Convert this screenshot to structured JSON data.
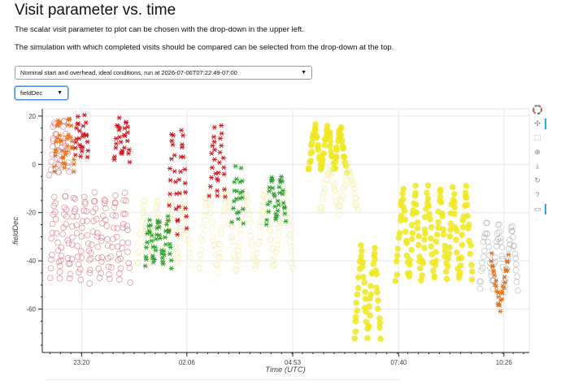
{
  "page": {
    "title": "Visit parameter vs. time",
    "desc1": "The scalar visit parameter to plot can be chosen with the drop-down in the upper left.",
    "desc2": "The simulation with which completed visits should be compared can be selected from the drop-down at the top."
  },
  "controls": {
    "simulation_select": "Nominal start and overhead, ideal conditions, run at 2026-07-06T07:22:49-07:00",
    "parameter_select": "fieldDec",
    "dropdown_glyph": "▼"
  },
  "toolbar": {
    "icons": [
      "bokeh-logo-icon",
      "pan-icon",
      "box-zoom-icon",
      "wheel-zoom-icon",
      "save-icon",
      "reset-icon",
      "help-icon",
      "hover-icon"
    ],
    "glyphs": [
      "✣",
      "⬚",
      "⊕",
      "⤓",
      "↻",
      "?",
      "▭"
    ]
  },
  "chart_data": {
    "type": "scatter",
    "title": "",
    "xlabel": "Time (UTC)",
    "ylabel": "fieldDec",
    "x_tick_labels": [
      "23:20",
      "02:06",
      "04:53",
      "07:40",
      "10:26"
    ],
    "x_tick_hours": [
      23.333,
      26.1,
      28.883,
      31.667,
      34.433
    ],
    "xlim_hours": [
      22.3,
      35.1
    ],
    "ylim": [
      -78,
      23
    ],
    "y_ticks": [
      20,
      0,
      -20,
      -40,
      -60
    ],
    "grid": true,
    "colors": {
      "completed_orange": "#e0701a",
      "completed_red": "#d0161e",
      "completed_green": "#2ca02c",
      "simulated_yellow": "#f0e81e",
      "simulated_pink": "#d47080",
      "simulated_faint": "#f4f0b0",
      "simulated_grey": "#b0b0b0"
    },
    "series": [
      {
        "style": "completed",
        "color": "completed_orange",
        "segments": [
          [
            22.6,
            23.15,
            -2,
            20,
            2
          ],
          [
            34.1,
            34.55,
            -38,
            -60,
            1
          ]
        ]
      },
      {
        "style": "completed",
        "color": "completed_red",
        "segments": [
          [
            23.15,
            23.5,
            3,
            19,
            2
          ],
          [
            24.2,
            24.6,
            2,
            19,
            2
          ],
          [
            25.6,
            26.1,
            -28,
            16,
            2
          ],
          [
            26.7,
            27.1,
            -14,
            16,
            2
          ]
        ]
      },
      {
        "style": "completed",
        "color": "completed_green",
        "segments": [
          [
            25.0,
            25.7,
            -42,
            -22,
            3
          ],
          [
            27.3,
            27.6,
            -24,
            -2,
            2
          ],
          [
            28.2,
            28.7,
            -24,
            -4,
            2
          ]
        ]
      },
      {
        "style": "simulated",
        "color": "simulated_yellow",
        "segments": [
          [
            29.3,
            30.3,
            -2,
            16,
            3
          ],
          [
            30.5,
            31.2,
            -72,
            -34,
            2
          ],
          [
            31.6,
            33.6,
            -48,
            -9,
            6
          ]
        ]
      },
      {
        "style": "simulated",
        "color": "simulated_pink",
        "segments": [
          [
            22.5,
            24.6,
            -48,
            -12,
            8
          ],
          [
            22.5,
            23.0,
            -4,
            18,
            2
          ]
        ]
      },
      {
        "style": "simulated",
        "color": "simulated_faint",
        "segments": [
          [
            24.8,
            26.2,
            -42,
            -14,
            4
          ],
          [
            26.4,
            28.9,
            -44,
            -10,
            5
          ],
          [
            29.6,
            30.6,
            -20,
            0,
            2
          ]
        ]
      },
      {
        "style": "simulated",
        "color": "simulated_grey",
        "segments": [
          [
            33.8,
            34.8,
            -52,
            -24,
            3
          ]
        ]
      }
    ]
  }
}
